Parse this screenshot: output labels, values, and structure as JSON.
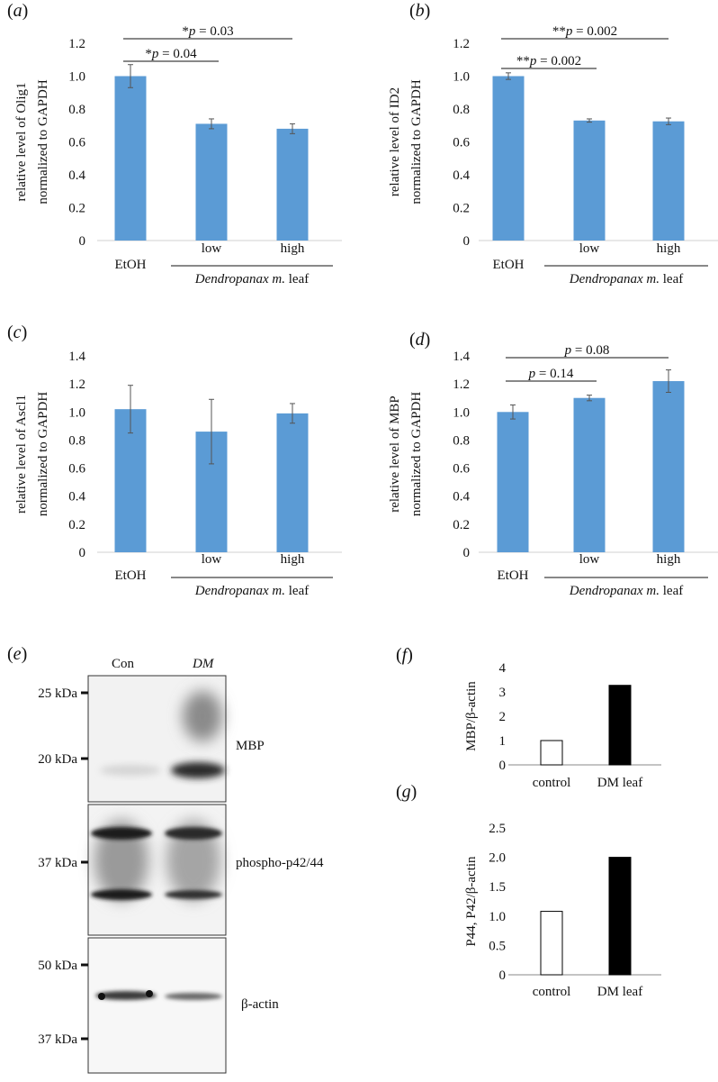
{
  "colors": {
    "bar_blue": "#5b9bd5",
    "bar_black": "#000000",
    "bar_white": "#ffffff",
    "axis": "#999999"
  },
  "chart_data": [
    {
      "panel": "(a)",
      "type": "bar",
      "ylabel": [
        "relative level of Olig1",
        "normalized to GAPDH"
      ],
      "categories": [
        "EtOH",
        "low",
        "high"
      ],
      "values": [
        1.0,
        0.71,
        0.68
      ],
      "errors": [
        0.07,
        0.03,
        0.03
      ],
      "ylim": [
        0,
        1.2
      ],
      "yticks": [
        "0",
        "0.2",
        "0.4",
        "0.6",
        "0.8",
        "1.0",
        "1.2"
      ],
      "group_label": {
        "italic": "Dendropanax m.",
        "rest": " leaf"
      },
      "annotations": [
        {
          "text": "*p = 0.03",
          "from": 0,
          "to": 2,
          "level": 0
        },
        {
          "text": "*p = 0.04",
          "from": 0,
          "to": 1,
          "level": 1
        }
      ]
    },
    {
      "panel": "(b)",
      "type": "bar",
      "ylabel": [
        "relative level of ID2",
        "normalized to GAPDH"
      ],
      "categories": [
        "EtOH",
        "low",
        "high"
      ],
      "values": [
        1.0,
        0.73,
        0.725
      ],
      "errors": [
        0.02,
        0.01,
        0.02
      ],
      "ylim": [
        0,
        1.2
      ],
      "yticks": [
        "0",
        "0.2",
        "0.4",
        "0.6",
        "0.8",
        "1.0",
        "1.2"
      ],
      "group_label": {
        "italic": "Dendropanax m.",
        "rest": " leaf"
      },
      "annotations": [
        {
          "text": "**p = 0.002",
          "from": 0,
          "to": 2,
          "level": 0
        },
        {
          "text": "**p = 0.002",
          "from": 0,
          "to": 1,
          "level": 1
        }
      ]
    },
    {
      "panel": "(c)",
      "type": "bar",
      "ylabel": [
        "relative level of Ascl1",
        "normalized to GAPDH"
      ],
      "categories": [
        "EtOH",
        "low",
        "high"
      ],
      "values": [
        1.02,
        0.86,
        0.99
      ],
      "errors": [
        0.17,
        0.23,
        0.07
      ],
      "ylim": [
        0,
        1.4
      ],
      "yticks": [
        "0",
        "0.2",
        "0.4",
        "0.6",
        "0.8",
        "1.0",
        "1.2",
        "1.4"
      ],
      "group_label": {
        "italic": "Dendropanax m.",
        "rest": " leaf"
      },
      "annotations": []
    },
    {
      "panel": "(d)",
      "type": "bar",
      "ylabel": [
        "relative level of MBP",
        "normalized to GAPDH"
      ],
      "categories": [
        "EtOH",
        "low",
        "high"
      ],
      "values": [
        1.0,
        1.1,
        1.22
      ],
      "errors": [
        0.05,
        0.02,
        0.08
      ],
      "ylim": [
        0,
        1.4
      ],
      "yticks": [
        "0",
        "0.2",
        "0.4",
        "0.6",
        "0.8",
        "1.0",
        "1.2",
        "1.4"
      ],
      "group_label": {
        "italic": "Dendropanax m.",
        "rest": " leaf"
      },
      "annotations": [
        {
          "text": "p = 0.08",
          "from": 0,
          "to": 2,
          "level": 0
        },
        {
          "text": "p = 0.14",
          "from": 0,
          "to": 1,
          "level": 1
        }
      ]
    },
    {
      "panel": "(f)",
      "type": "bar",
      "ylabel": [
        "MBP/β-actin"
      ],
      "categories": [
        "control",
        "DM leaf"
      ],
      "values": [
        1.0,
        3.27
      ],
      "fills": [
        "#ffffff",
        "#000000"
      ],
      "ylim": [
        0,
        4
      ],
      "yticks": [
        "0",
        "1",
        "2",
        "3",
        "4"
      ]
    },
    {
      "panel": "(g)",
      "type": "bar",
      "ylabel": [
        "P44, P42/β-actin"
      ],
      "categories": [
        "control",
        "DM leaf"
      ],
      "values": [
        1.08,
        2.0
      ],
      "fills": [
        "#ffffff",
        "#000000"
      ],
      "ylim": [
        0,
        2.5
      ],
      "yticks": [
        "0",
        "0.5",
        "1.0",
        "1.5",
        "2.0",
        "2.5"
      ]
    }
  ],
  "blot": {
    "panel": "(e)",
    "lanes": [
      "Con",
      "DM"
    ],
    "rows": [
      {
        "label": "MBP",
        "markers": [
          "25 kDa",
          "20 kDa"
        ]
      },
      {
        "label": "phospho-p42/44",
        "markers": [
          "37 kDa"
        ]
      },
      {
        "label": "β-actin",
        "markers": [
          "50 kDa",
          "37 kDa"
        ]
      }
    ]
  }
}
